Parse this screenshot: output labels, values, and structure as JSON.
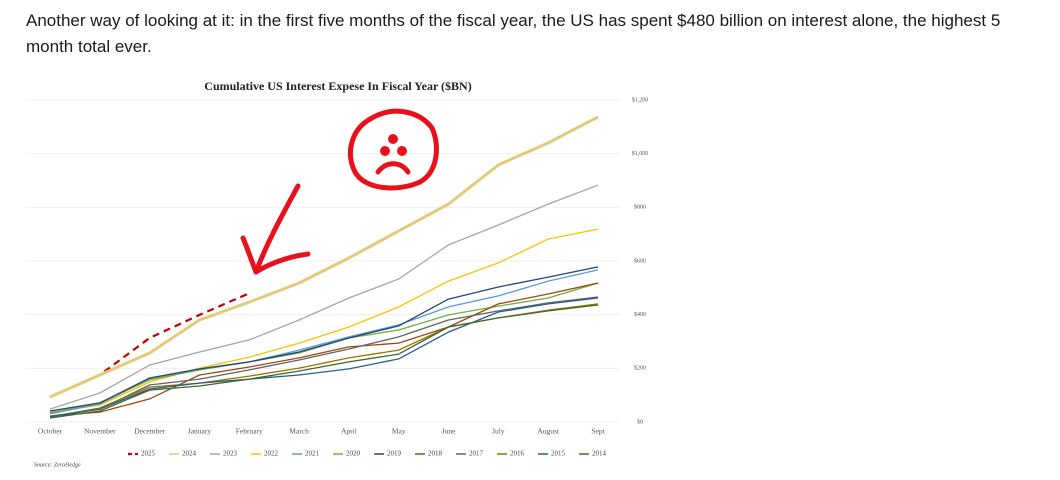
{
  "post": {
    "text": "Another way of looking at it: in the first five months of the fiscal year, the US has spent $480 billion on interest alone, the highest 5 month total ever."
  },
  "chart_data": {
    "type": "line",
    "title": "Cumulative US Interest Expese In Fiscal Year ($BN)",
    "source": "Source: ZeroHedge",
    "categories": [
      "October",
      "November",
      "December",
      "January",
      "February",
      "March",
      "April",
      "May",
      "June",
      "July",
      "August",
      "Sept"
    ],
    "ylim": [
      0,
      1200
    ],
    "yticks": [
      {
        "value": 0,
        "label": "$0"
      },
      {
        "value": 200,
        "label": "$200"
      },
      {
        "value": 400,
        "label": "$400"
      },
      {
        "value": 600,
        "label": "$600"
      },
      {
        "value": 800,
        "label": "$800"
      },
      {
        "value": 1000,
        "label": "$1,000"
      },
      {
        "value": 1200,
        "label": "$1,200"
      }
    ],
    "grid": true,
    "legend": "bottom",
    "series": [
      {
        "name": "2025",
        "color": "#c00000",
        "line_style": "dashed",
        "values": [
          93,
          175,
          313,
          399,
          480,
          null,
          null,
          null,
          null,
          null,
          null,
          null
        ]
      },
      {
        "name": "2024",
        "color": "#e3c97a",
        "line_width": 3,
        "values": [
          93,
          175,
          257,
          380,
          447,
          518,
          611,
          712,
          812,
          958,
          1040,
          1137
        ]
      },
      {
        "name": "2023",
        "color": "#a5a5a5",
        "values": [
          48,
          108,
          212,
          261,
          306,
          380,
          462,
          533,
          660,
          734,
          812,
          883
        ]
      },
      {
        "name": "2022",
        "color": "#ffc000",
        "values": [
          37,
          63,
          149,
          201,
          242,
          294,
          354,
          429,
          525,
          593,
          682,
          719
        ]
      },
      {
        "name": "2021",
        "color": "#5b9bd5",
        "values": [
          30,
          67,
          160,
          194,
          224,
          268,
          317,
          362,
          429,
          470,
          525,
          567
        ]
      },
      {
        "name": "2020",
        "color": "#70ad47",
        "values": [
          34,
          71,
          157,
          194,
          224,
          257,
          313,
          343,
          399,
          432,
          462,
          518
        ]
      },
      {
        "name": "2019",
        "color": "#264478",
        "values": [
          41,
          71,
          164,
          198,
          224,
          261,
          313,
          358,
          458,
          503,
          540,
          578
        ]
      },
      {
        "name": "2018",
        "color": "#9e480e",
        "values": [
          22,
          37,
          86,
          175,
          205,
          239,
          280,
          294,
          354,
          440,
          477,
          518
        ]
      },
      {
        "name": "2017",
        "color": "#636363",
        "values": [
          22,
          48,
          138,
          160,
          194,
          231,
          272,
          317,
          380,
          414,
          444,
          466
        ]
      },
      {
        "name": "2016",
        "color": "#997300",
        "values": [
          19,
          52,
          130,
          145,
          171,
          201,
          239,
          268,
          354,
          388,
          417,
          440
        ]
      },
      {
        "name": "2015",
        "color": "#255e91",
        "values": [
          19,
          48,
          123,
          145,
          160,
          175,
          198,
          235,
          335,
          410,
          440,
          462
        ]
      },
      {
        "name": "2014",
        "color": "#43682b",
        "values": [
          15,
          41,
          119,
          134,
          160,
          190,
          224,
          253,
          354,
          388,
          414,
          436
        ]
      }
    ]
  }
}
